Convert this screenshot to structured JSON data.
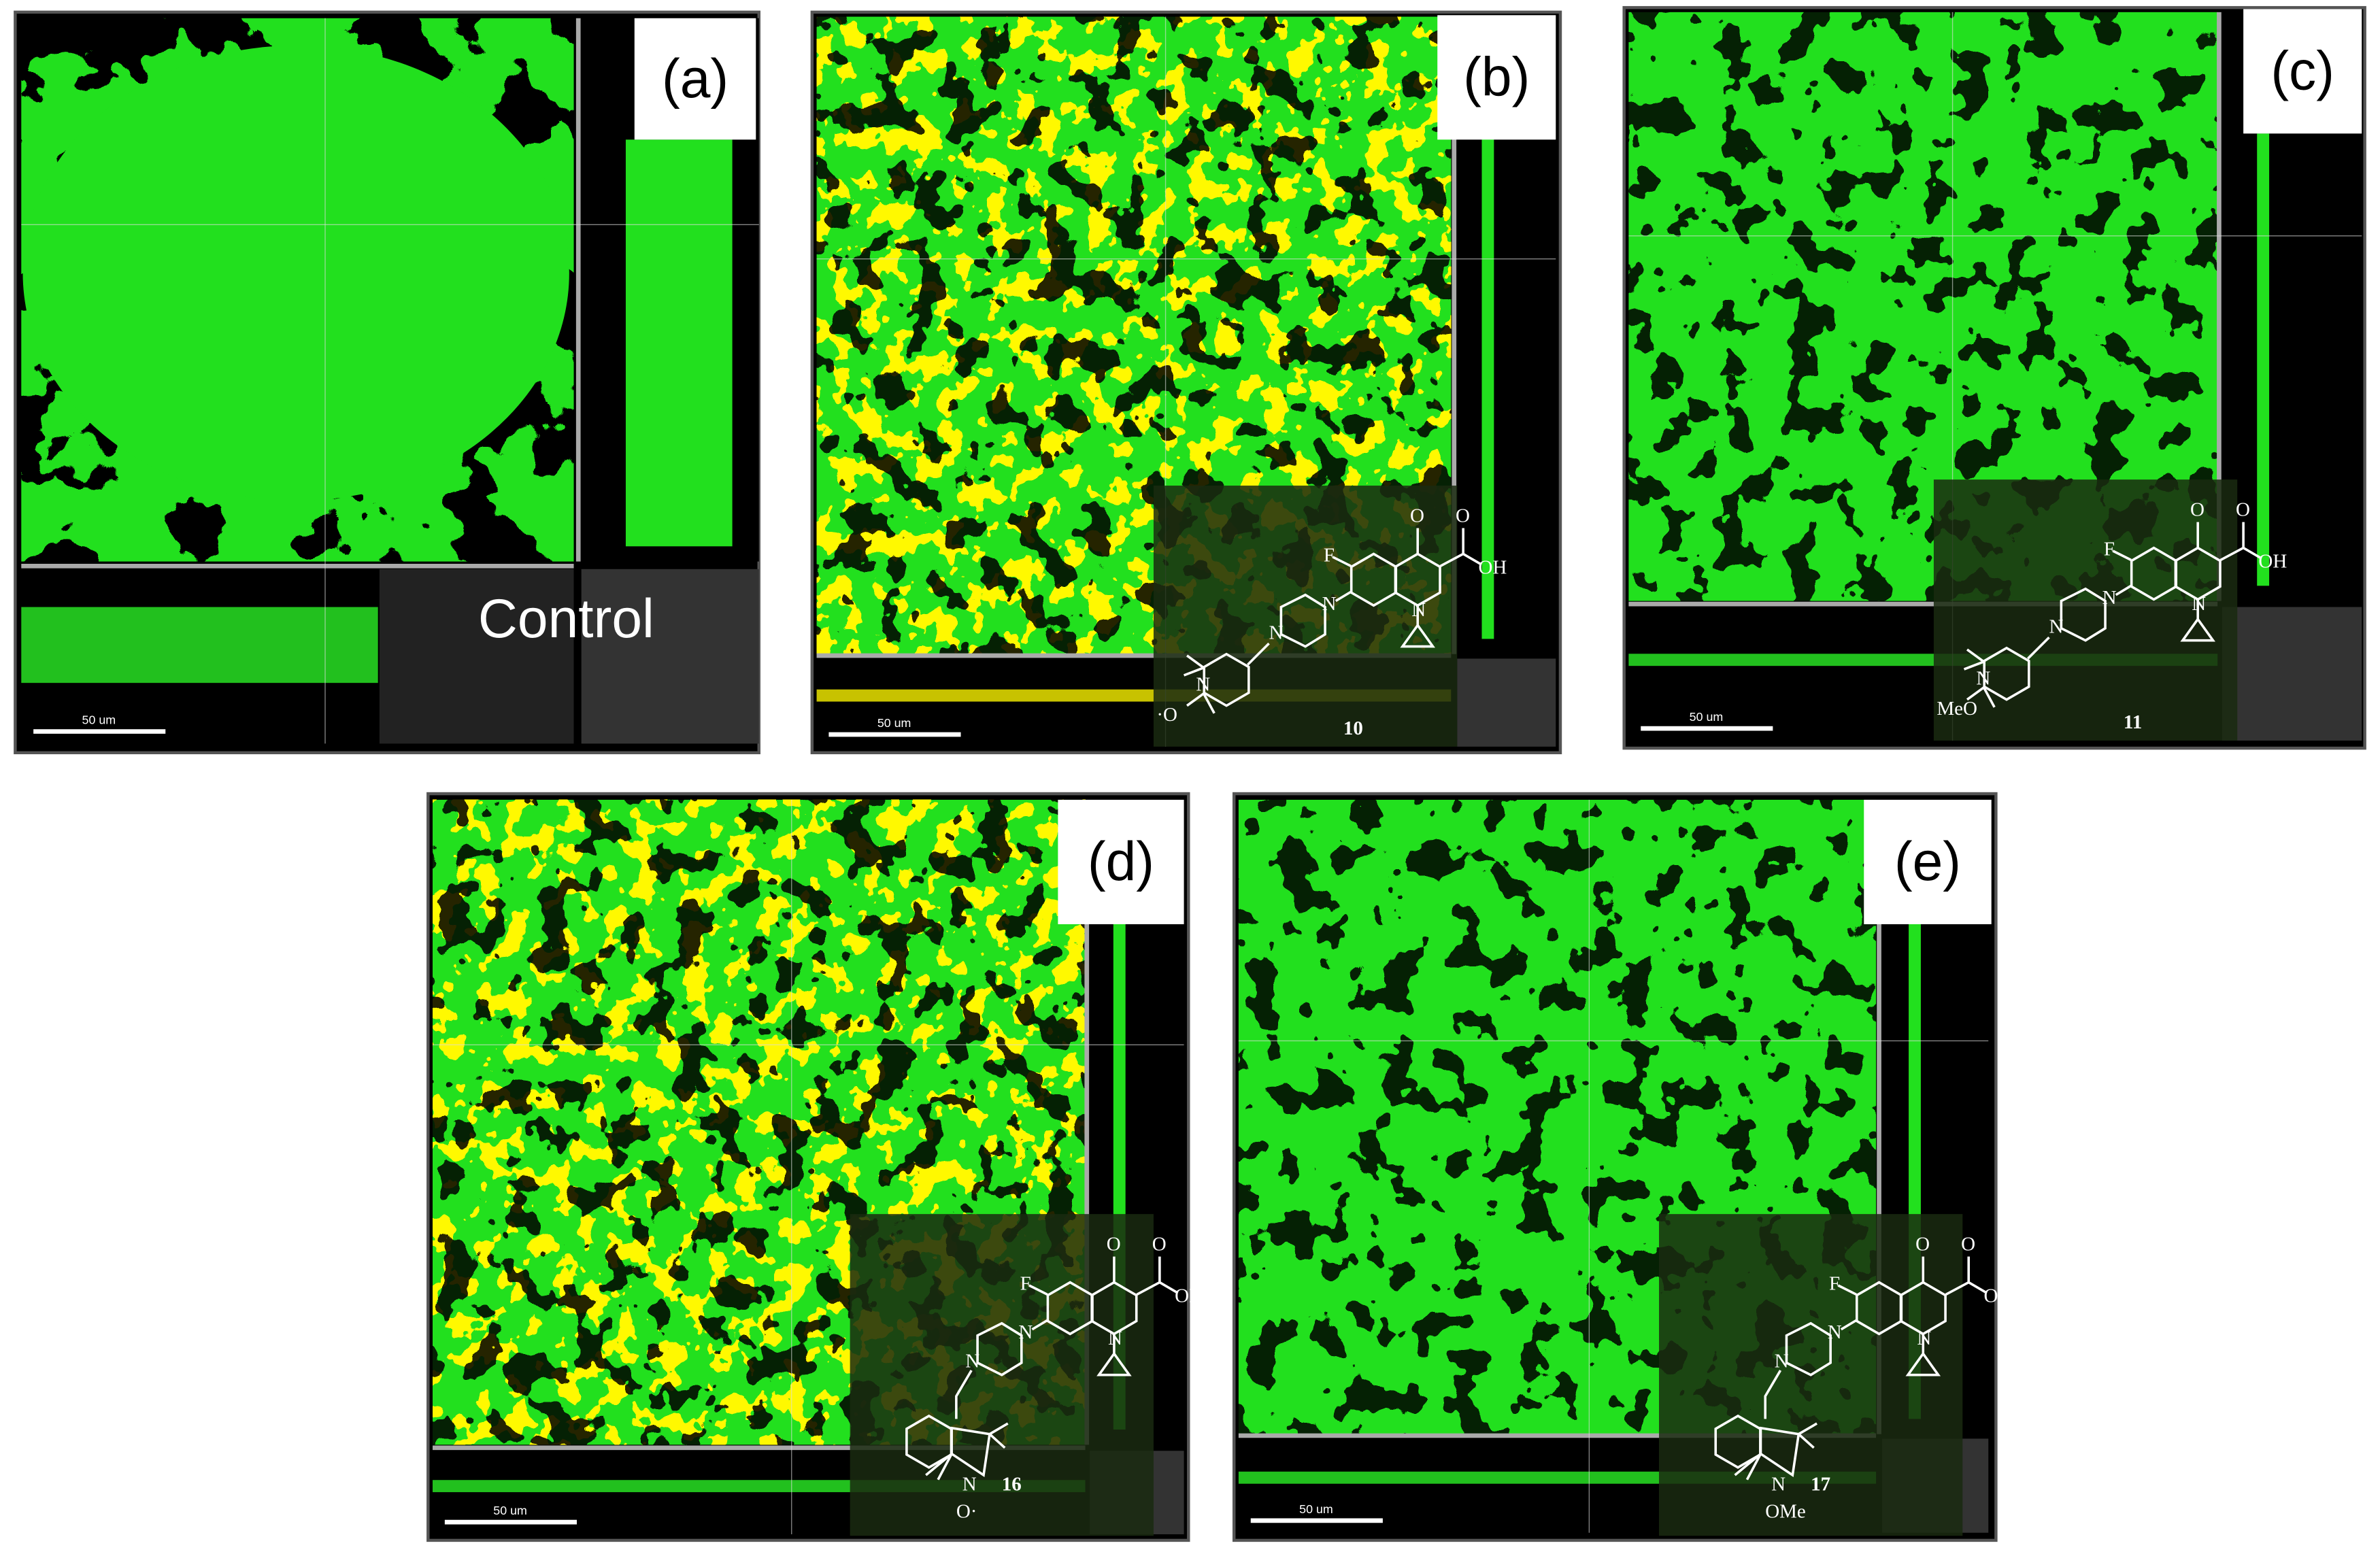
{
  "panels": [
    {
      "label": "(a)",
      "caption": "Control",
      "scale_bar": "50 um"
    },
    {
      "label": "(b)",
      "scale_bar": "50 um",
      "compound": "10",
      "atoms": [
        "F",
        "O",
        "O",
        "OH",
        "N",
        "N",
        "N",
        "N",
        "·O"
      ]
    },
    {
      "label": "(c)",
      "scale_bar": "50 um",
      "compound": "11",
      "atoms": [
        "F",
        "O",
        "O",
        "OH",
        "N",
        "N",
        "N",
        "N",
        "MeO"
      ]
    },
    {
      "label": "(d)",
      "scale_bar": "50 um",
      "compound": "16",
      "atoms": [
        "F",
        "O",
        "O",
        "OH",
        "N",
        "N",
        "N",
        "N",
        "O·"
      ]
    },
    {
      "label": "(e)",
      "scale_bar": "50 um",
      "compound": "17",
      "atoms": [
        "F",
        "O",
        "O",
        "OH",
        "N",
        "N",
        "N",
        "N",
        "OMe"
      ]
    }
  ]
}
